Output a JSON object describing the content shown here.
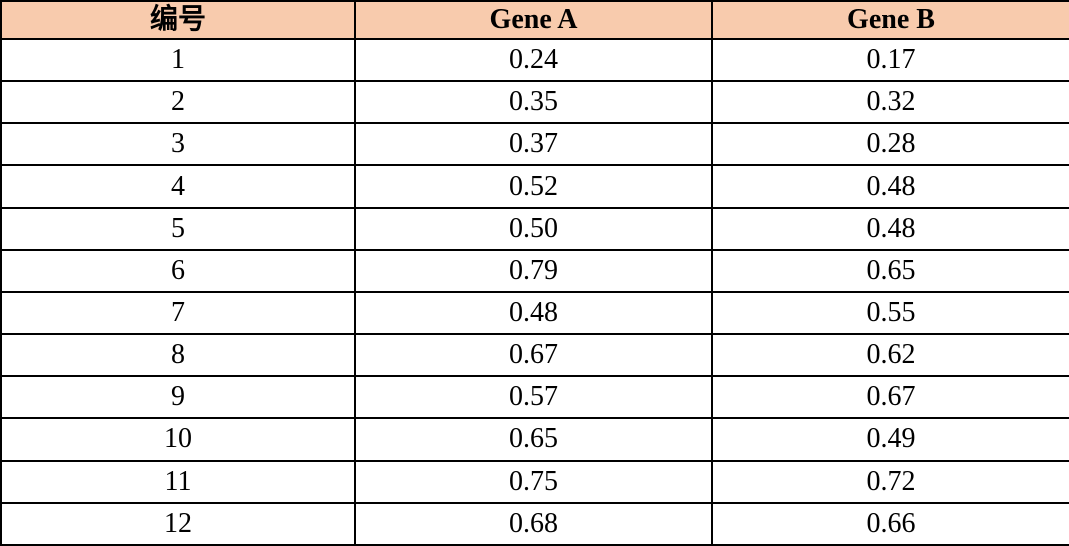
{
  "chart_data": {
    "type": "table",
    "columns": [
      "编号",
      "Gene A",
      "Gene B"
    ],
    "rows": [
      [
        "1",
        "0.24",
        "0.17"
      ],
      [
        "2",
        "0.35",
        "0.32"
      ],
      [
        "3",
        "0.37",
        "0.28"
      ],
      [
        "4",
        "0.52",
        "0.48"
      ],
      [
        "5",
        "0.50",
        "0.48"
      ],
      [
        "6",
        "0.79",
        "0.65"
      ],
      [
        "7",
        "0.48",
        "0.55"
      ],
      [
        "8",
        "0.67",
        "0.62"
      ],
      [
        "9",
        "0.57",
        "0.67"
      ],
      [
        "10",
        "0.65",
        "0.49"
      ],
      [
        "11",
        "0.75",
        "0.72"
      ],
      [
        "12",
        "0.68",
        "0.66"
      ]
    ]
  },
  "colors": {
    "header_bg": "#F8CBAD",
    "border": "#000000",
    "text": "#000000"
  }
}
